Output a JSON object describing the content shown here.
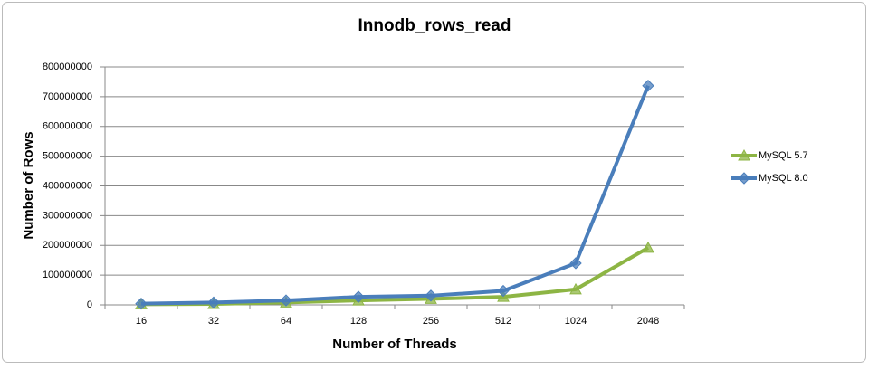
{
  "chart_data": {
    "type": "line",
    "title": "Innodb_rows_read",
    "x_label": "Number of Threads",
    "y_label": "Number of Rows",
    "categories": [
      "16",
      "32",
      "64",
      "128",
      "256",
      "512",
      "1024",
      "2048"
    ],
    "series": [
      {
        "name": "MySQL 5.7",
        "color": "#8db544",
        "marker": "triangle",
        "values": [
          2000000,
          3000000,
          8000000,
          15000000,
          20000000,
          27000000,
          52000000,
          192000000
        ]
      },
      {
        "name": "MySQL 8.0",
        "color": "#4a7ebb",
        "marker": "diamond",
        "values": [
          4000000,
          8000000,
          15000000,
          27000000,
          31000000,
          47000000,
          140000000,
          737000000
        ]
      }
    ],
    "ylim": [
      0,
      800000000
    ],
    "yticks": [
      0,
      100000000,
      200000000,
      300000000,
      400000000,
      500000000,
      600000000,
      700000000,
      800000000
    ],
    "grid": true,
    "legend": "right"
  }
}
